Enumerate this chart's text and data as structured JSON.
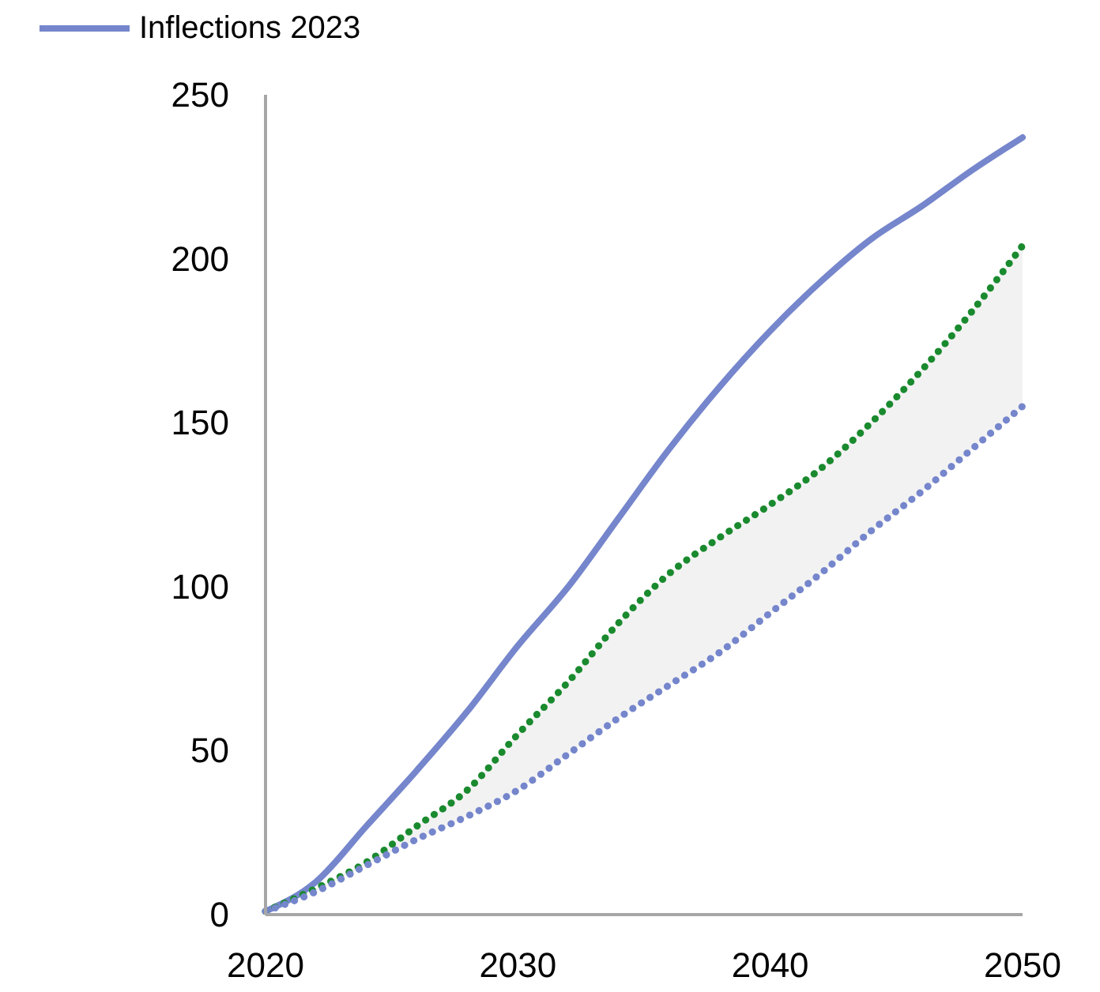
{
  "chart_data": {
    "type": "line",
    "x": [
      2020,
      2022,
      2024,
      2026,
      2028,
      2030,
      2032,
      2034,
      2036,
      2038,
      2040,
      2042,
      2044,
      2046,
      2048,
      2050
    ],
    "series": [
      {
        "name": "Inflections 2023",
        "color": "#7586cc",
        "line_style": "solid",
        "values": [
          1,
          10,
          27,
          44,
          62,
          82,
          100,
          121,
          142,
          161,
          178,
          193,
          206,
          216,
          227,
          237
        ]
      },
      {
        "color": "#1a8a2e",
        "line_style": "dotted",
        "values": [
          1,
          8,
          16,
          27,
          38,
          55,
          71,
          89,
          104,
          115,
          125,
          136,
          150,
          166,
          184,
          204
        ],
        "lower": [
          1,
          7,
          15,
          23,
          30,
          38,
          49,
          60,
          70,
          80,
          92,
          104,
          117,
          129,
          142,
          155
        ],
        "upper": [
          1,
          8,
          16,
          27,
          38,
          55,
          71,
          89,
          104,
          115,
          125,
          136,
          150,
          166,
          184,
          204
        ]
      },
      {
        "color": "#7586cc",
        "line_style": "dotted",
        "values": [
          1,
          7,
          15,
          23,
          30,
          38,
          49,
          60,
          70,
          80,
          92,
          104,
          117,
          129,
          142,
          155
        ]
      }
    ],
    "xlim": [
      2020,
      2050
    ],
    "xticks": [
      2020,
      2030,
      2040,
      2050
    ],
    "ylim": [
      0,
      250
    ],
    "yticks": [
      0,
      50,
      100,
      150,
      200,
      250
    ],
    "grid": false,
    "legend": "top left",
    "marker": "none"
  }
}
